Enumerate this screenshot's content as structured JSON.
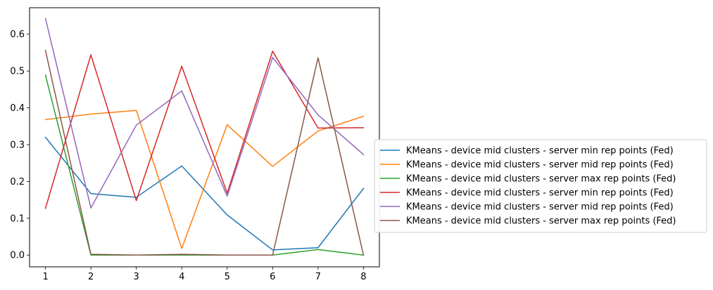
{
  "chart_data": {
    "type": "line",
    "title": "",
    "xlabel": "",
    "ylabel": "",
    "x": [
      1,
      2,
      3,
      4,
      5,
      6,
      7,
      8
    ],
    "xlim": [
      0.65,
      8.35
    ],
    "ylim": [
      -0.032,
      0.672
    ],
    "xticks": [
      1,
      2,
      3,
      4,
      5,
      6,
      7,
      8
    ],
    "yticks": [
      0.0,
      0.1,
      0.2,
      0.3,
      0.4,
      0.5,
      0.6
    ],
    "ytick_labels": [
      "0.0",
      "0.1",
      "0.2",
      "0.3",
      "0.4",
      "0.5",
      "0.6"
    ],
    "grid": false,
    "legend_position": "right, outside plot",
    "series": [
      {
        "name": "KMeans - device mid clusters - server min rep points (Fed)",
        "color": "#1f77b4",
        "values": [
          0.32,
          0.167,
          0.157,
          0.242,
          0.109,
          0.014,
          0.02,
          0.181
        ]
      },
      {
        "name": "KMeans - device mid clusters - server mid rep points (Fed)",
        "color": "#ff7f0e",
        "values": [
          0.368,
          0.383,
          0.393,
          0.018,
          0.354,
          0.241,
          0.337,
          0.377
        ]
      },
      {
        "name": "KMeans - device mid clusters - server max rep points (Fed)",
        "color": "#2ca02c",
        "values": [
          0.489,
          0.0,
          0.0,
          0.0,
          0.0,
          0.0,
          0.015,
          0.0
        ]
      },
      {
        "name": "KMeans - device mid clusters - server min rep points (Fed)",
        "color": "#d62728",
        "values": [
          0.127,
          0.544,
          0.148,
          0.513,
          0.168,
          0.554,
          0.345,
          0.346
        ]
      },
      {
        "name": "KMeans - device mid clusters - server mid rep points (Fed)",
        "color": "#9467bd",
        "values": [
          0.643,
          0.128,
          0.353,
          0.446,
          0.16,
          0.537,
          0.381,
          0.273
        ]
      },
      {
        "name": "KMeans - device mid clusters - server max rep points (Fed)",
        "color": "#8c564b",
        "values": [
          0.556,
          0.002,
          0.0,
          0.002,
          0.0,
          0.0,
          0.536,
          0.0
        ]
      }
    ]
  }
}
